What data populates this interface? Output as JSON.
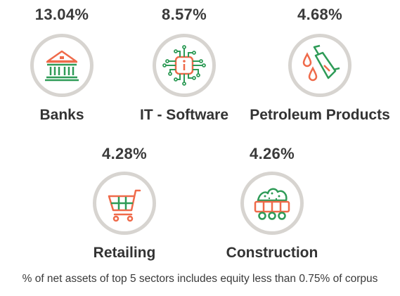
{
  "colors": {
    "green": "#2e9b57",
    "orange": "#ef6a4a",
    "ring": "#d7d4d0",
    "text": "#333333"
  },
  "chart_data": {
    "type": "table",
    "categories": [
      "Banks",
      "IT - Software",
      "Petroleum Products",
      "Retailing",
      "Construction"
    ],
    "values": [
      13.04,
      8.57,
      4.68,
      4.28,
      4.26
    ],
    "value_labels": [
      "13.04%",
      "8.57%",
      "4.68%",
      "4.28%",
      "4.26%"
    ],
    "icons": [
      "bank-icon",
      "chip-icon",
      "fuel-nozzle-icon",
      "shopping-cart-icon",
      "mining-cart-icon"
    ],
    "footnote": "% of net assets of top 5 sectors includes equity less than 0.75% of corpus"
  }
}
